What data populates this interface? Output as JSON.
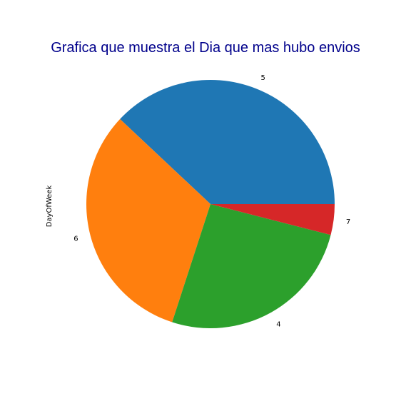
{
  "chart_data": {
    "type": "pie",
    "title": "Grafica que muestra el Dia que mas hubo envios",
    "ylabel": "DayOfWeek",
    "categories": [
      "5",
      "6",
      "4",
      "7"
    ],
    "values": [
      38,
      32,
      26,
      4
    ],
    "colors": [
      "#1f77b4",
      "#ff7f0e",
      "#2ca02c",
      "#d62728"
    ],
    "title_color": "#00008b",
    "start_angle_deg": 0,
    "direction": "counterclockwise"
  }
}
